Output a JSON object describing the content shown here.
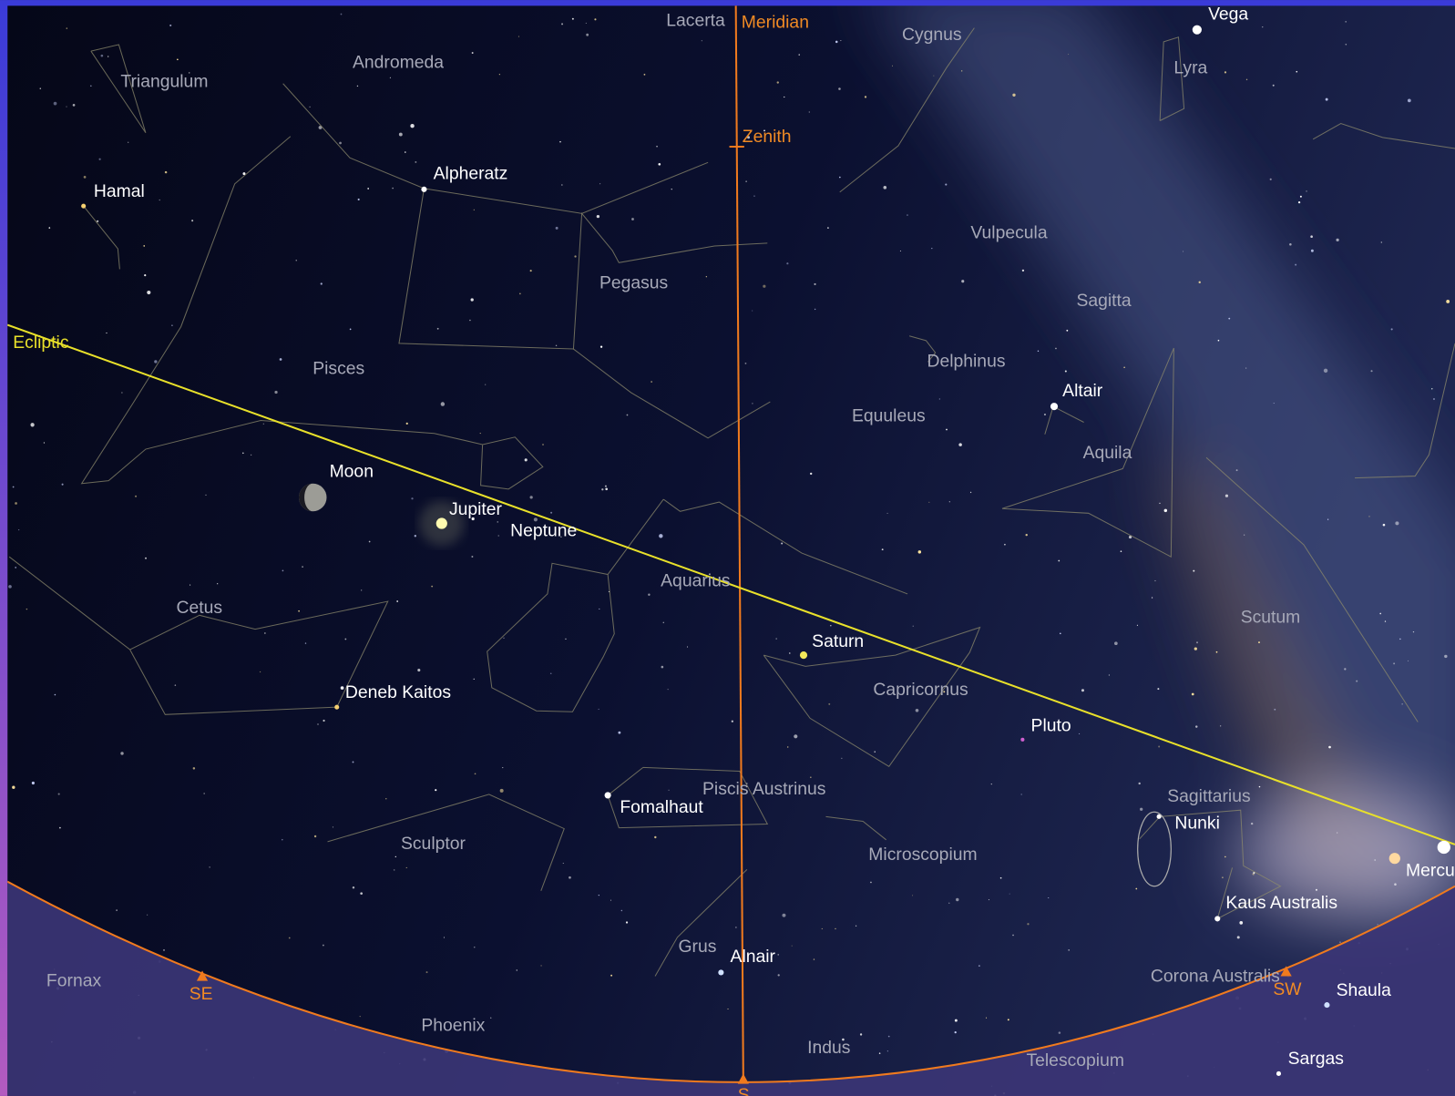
{
  "lines": {
    "meridian": "Meridian",
    "zenith": "Zenith",
    "ecliptic": "Ecliptic"
  },
  "constellations": [
    "Lacerta",
    "Andromeda",
    "Triangulum",
    "Cygnus",
    "Lyra",
    "Pegasus",
    "Vulpecula",
    "Sagitta",
    "Pisces",
    "Delphinus",
    "Equuleus",
    "Aquila",
    "Aquarius",
    "Cetus",
    "Scutum",
    "Capricornus",
    "Piscis Austrinus",
    "Sagittarius",
    "Sculptor",
    "Microscopium",
    "Grus",
    "Fornax",
    "Corona Australis",
    "Phoenix",
    "Indus",
    "Telescopium"
  ],
  "stars": [
    "Vega",
    "Hamal",
    "Alpheratz",
    "Altair",
    "Deneb Kaitos",
    "Fomalhaut",
    "Nunki",
    "Kaus Australis",
    "Alnair",
    "Shaula",
    "Sargas"
  ],
  "planets": [
    "Moon",
    "Jupiter",
    "Neptune",
    "Saturn",
    "Pluto",
    "Mercury"
  ],
  "directions": [
    "SE",
    "SW",
    "S"
  ]
}
